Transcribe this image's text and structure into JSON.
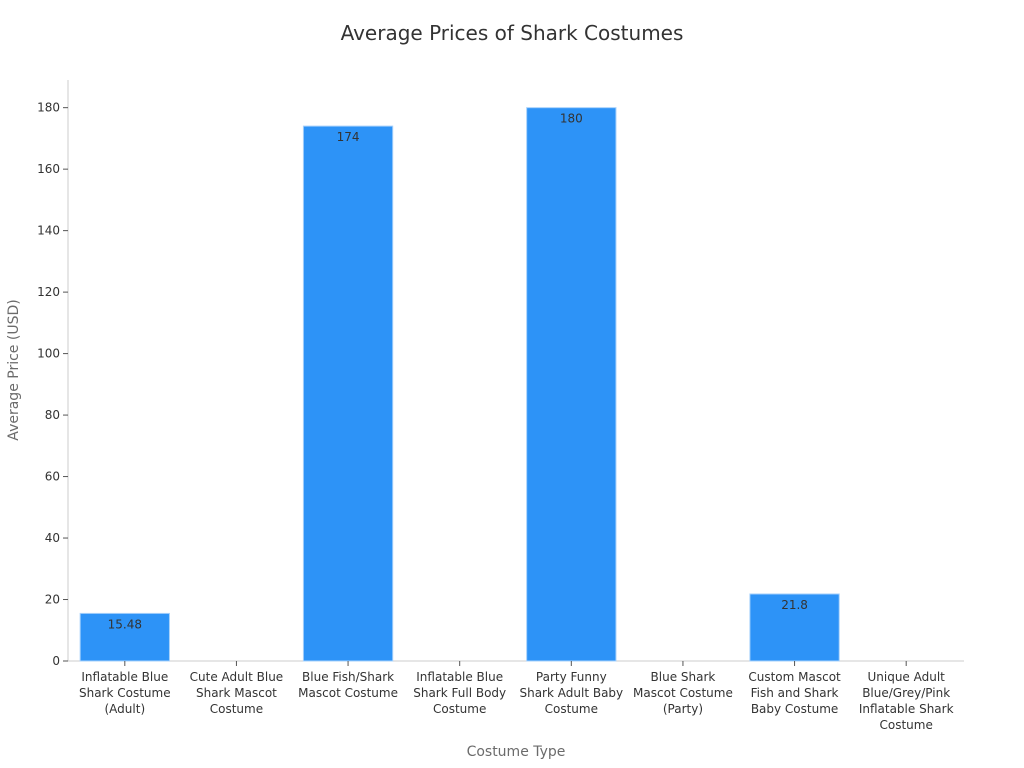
{
  "chart_data": {
    "type": "bar",
    "title": "Average Prices of Shark Costumes",
    "xlabel": "Costume Type",
    "ylabel": "Average Price (USD)",
    "categories": [
      "Inflatable Blue Shark Costume (Adult)",
      "Cute Adult Blue Shark Mascot Costume",
      "Blue Fish/Shark Mascot Costume",
      "Inflatable Blue Shark Full Body Costume",
      "Party Funny Shark Adult Baby Costume",
      "Blue Shark Mascot Costume (Party)",
      "Custom Mascot Fish and Shark Baby Costume",
      "Unique Adult Blue/Grey/Pink Inflatable Shark Costume"
    ],
    "category_lines": [
      [
        "Inflatable Blue",
        "Shark Costume",
        "(Adult)"
      ],
      [
        "Cute Adult Blue",
        "Shark Mascot",
        "Costume"
      ],
      [
        "Blue Fish/Shark",
        "Mascot Costume"
      ],
      [
        "Inflatable Blue",
        "Shark Full Body",
        "Costume"
      ],
      [
        "Party Funny",
        "Shark Adult Baby",
        "Costume"
      ],
      [
        "Blue Shark",
        "Mascot Costume",
        "(Party)"
      ],
      [
        "Custom Mascot",
        "Fish and Shark",
        "Baby Costume"
      ],
      [
        "Unique Adult",
        "Blue/Grey/Pink",
        "Inflatable Shark",
        "Costume"
      ]
    ],
    "values": [
      15.48,
      null,
      174,
      null,
      180,
      null,
      21.8,
      null
    ],
    "data_labels": [
      "15.48",
      "",
      "174",
      "",
      "180",
      "",
      "21.8",
      ""
    ],
    "yticks": [
      0,
      20,
      40,
      60,
      80,
      100,
      120,
      140,
      160,
      180
    ],
    "ylim": [
      0,
      189
    ],
    "grid": false,
    "colors": {
      "bar": "#2d93f7",
      "bar_edge": "#a6d0fb",
      "axis": "#cccccc",
      "text": "#333333"
    }
  }
}
